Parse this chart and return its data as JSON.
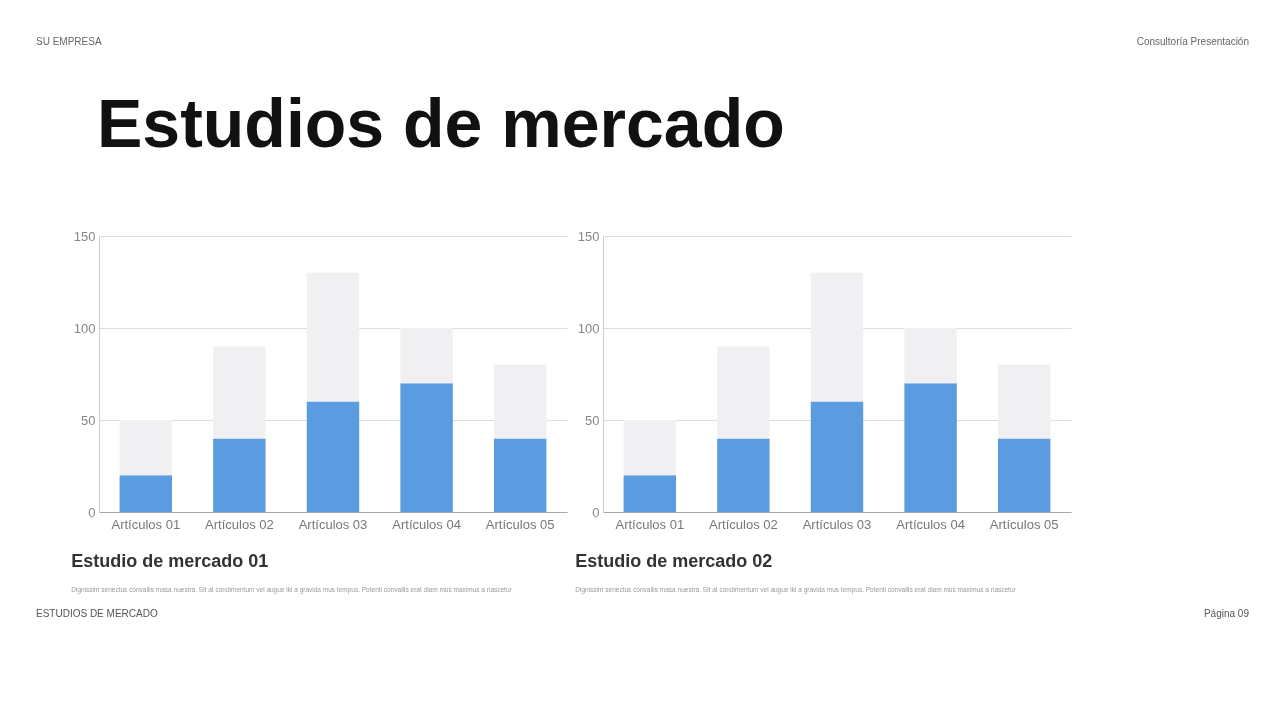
{
  "chart_data": [
    {
      "type": "bar",
      "title": "Estudio de mercado 01",
      "subtitle": "Dignissim senectus convallis masa nuestra. Sit at condimentum vel augue iki a gravida mus tempus. Potenti convallis erat diam mus maximus a nascetur",
      "categories": [
        "Artículos 01",
        "Artículos 02",
        "Artículos 03",
        "Artículos 04",
        "Artículos 05"
      ],
      "series": [
        {
          "color": "#5b9bdf",
          "values": [
            20,
            40,
            60,
            70,
            40
          ]
        },
        {
          "color": "#f0f0f2",
          "values": [
            30,
            50,
            70,
            30,
            40
          ]
        }
      ],
      "stacked": true,
      "ylim": [
        0,
        150
      ],
      "yticks": [
        0,
        50,
        100,
        150
      ],
      "grid": "y",
      "annotations": [
        "SU EMPRESA",
        "Consultoría Presentación",
        "Estudios de mercado",
        "ESTUDIOS DE MERCADO",
        "Página 09"
      ]
    },
    {
      "type": "bar",
      "title": "Estudio de mercado 02",
      "subtitle": "Dignissim senectus convallis masa nuestra. Sit at condimentum vel augue iki a gravida mus tempus. Potenti convallis erat diam mus maximus a nascetur",
      "categories": [
        "Artículos 01",
        "Artículos 02",
        "Artículos 03",
        "Artículos 04",
        "Artículos 05"
      ],
      "series": [
        {
          "color": "#5b9bdf",
          "values": [
            20,
            40,
            60,
            70,
            40
          ]
        },
        {
          "color": "#f0f0f2",
          "values": [
            30,
            50,
            70,
            30,
            40
          ]
        }
      ],
      "stacked": true,
      "ylim": [
        0,
        150
      ],
      "yticks": [
        0,
        50,
        100,
        150
      ],
      "grid": "y"
    }
  ]
}
